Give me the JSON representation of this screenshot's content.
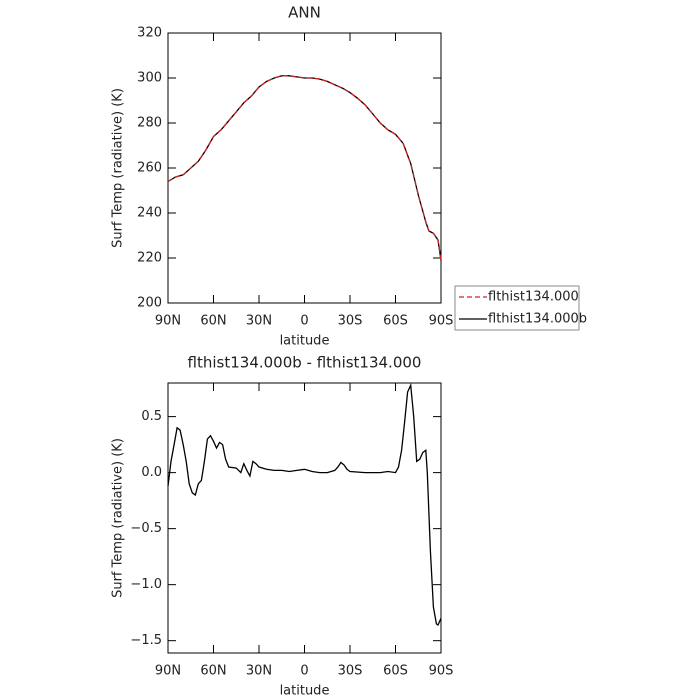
{
  "chart_data": [
    {
      "type": "line",
      "title": "ANN",
      "xlabel": "latitude",
      "ylabel": "Surf Temp (radiative) (K)",
      "x": [
        90,
        85,
        80,
        75,
        70,
        65,
        60,
        55,
        50,
        45,
        40,
        35,
        30,
        25,
        20,
        15,
        10,
        5,
        0,
        -5,
        -10,
        -15,
        -20,
        -25,
        -30,
        -35,
        -40,
        -45,
        -50,
        -55,
        -60,
        -65,
        -70,
        -75,
        -80,
        -82,
        -85,
        -88,
        -90
      ],
      "series": [
        {
          "name": "flthist134.000b",
          "color": "#000000",
          "dash": false,
          "values": [
            254,
            256,
            257,
            260,
            263,
            268,
            274,
            277,
            281,
            285,
            289,
            292,
            296,
            298.5,
            300,
            301,
            301,
            300.5,
            300,
            300,
            299.5,
            298.5,
            297,
            295.5,
            293.5,
            291,
            288,
            284,
            280,
            277,
            275,
            271,
            262,
            248,
            236,
            232,
            231,
            228,
            219
          ]
        },
        {
          "name": "flthist134.000",
          "color": "#d62020",
          "dash": true,
          "values": [
            254,
            256,
            257,
            260,
            263,
            268,
            274,
            277,
            281,
            285,
            289,
            292,
            296,
            298.5,
            300,
            301,
            301,
            300.5,
            300,
            300,
            299.5,
            298.5,
            297,
            295.5,
            293.5,
            291,
            288,
            284,
            280,
            277,
            275,
            271,
            262,
            248,
            236,
            232,
            231,
            228,
            219
          ]
        }
      ],
      "xlim": [
        90,
        -90
      ],
      "xticks": [
        {
          "value": 90,
          "label": "90N"
        },
        {
          "value": 60,
          "label": "60N"
        },
        {
          "value": 30,
          "label": "30N"
        },
        0,
        {
          "value": -30,
          "label": "30S"
        },
        {
          "value": -60,
          "label": "60S"
        },
        {
          "value": -90,
          "label": "90S"
        }
      ],
      "ylim": [
        200,
        320
      ],
      "yticks": [
        200,
        220,
        240,
        260,
        280,
        300,
        320
      ],
      "legend": "right"
    },
    {
      "type": "line",
      "title": "flthist134.000b - flthist134.000",
      "xlabel": "latitude",
      "ylabel": "Surf Temp (radiative) (K)",
      "x": [
        90,
        88,
        86,
        84,
        82,
        80,
        78,
        76,
        74,
        72,
        70,
        68,
        66,
        64,
        62,
        60,
        58,
        56,
        54,
        52,
        50,
        45,
        42,
        40,
        38,
        36,
        34,
        32,
        30,
        25,
        20,
        15,
        10,
        5,
        0,
        -5,
        -10,
        -15,
        -20,
        -22,
        -24,
        -26,
        -28,
        -30,
        -40,
        -50,
        -55,
        -60,
        -62,
        -64,
        -66,
        -68,
        -70,
        -72,
        -74,
        -76,
        -78,
        -80,
        -81,
        -83,
        -85,
        -87,
        -88,
        -90
      ],
      "series": [
        {
          "color": "#000000",
          "dash": false,
          "values": [
            -0.12,
            0.1,
            0.25,
            0.4,
            0.38,
            0.25,
            0.1,
            -0.1,
            -0.18,
            -0.2,
            -0.1,
            -0.07,
            0.1,
            0.3,
            0.33,
            0.28,
            0.22,
            0.27,
            0.25,
            0.12,
            0.05,
            0.04,
            0.0,
            0.08,
            0.02,
            -0.03,
            0.1,
            0.08,
            0.05,
            0.03,
            0.02,
            0.02,
            0.01,
            0.02,
            0.03,
            0.01,
            0.0,
            0.0,
            0.02,
            0.05,
            0.09,
            0.07,
            0.03,
            0.01,
            0.0,
            0.0,
            0.01,
            0.0,
            0.05,
            0.2,
            0.45,
            0.72,
            0.78,
            0.5,
            0.1,
            0.12,
            0.18,
            0.2,
            0.0,
            -0.7,
            -1.2,
            -1.35,
            -1.36,
            -1.3
          ]
        }
      ],
      "xlim": [
        90,
        -90
      ],
      "xticks": [
        {
          "value": 90,
          "label": "90N"
        },
        {
          "value": 60,
          "label": "60N"
        },
        {
          "value": 30,
          "label": "30N"
        },
        0,
        {
          "value": -30,
          "label": "30S"
        },
        {
          "value": -60,
          "label": "60S"
        },
        {
          "value": -90,
          "label": "90S"
        }
      ],
      "ylim": [
        -1.61,
        0.8
      ],
      "yticks": [
        0.5,
        {
          "value": 0,
          "label": "0.0"
        },
        {
          "value": -0.5,
          "label": "−0.5"
        },
        {
          "value": -1,
          "label": "−1.0"
        },
        {
          "value": -1.5,
          "label": "−1.5"
        }
      ]
    }
  ]
}
